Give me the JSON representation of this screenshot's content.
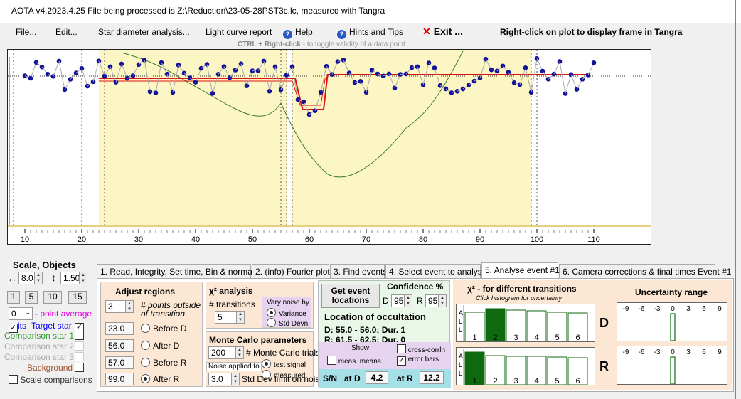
{
  "window": {
    "title": "AOTA v4.2023.4.25   File being processed is Z:\\Reduction\\23-05-28PST3c.lc, measured with Tangra"
  },
  "menu": {
    "file": "File...",
    "edit": "Edit...",
    "star_diameter": "Star diameter analysis...",
    "light_curve": "Light curve report",
    "help": "Help",
    "hints": "Hints and Tips",
    "exit": "Exit ...",
    "right_click_hint": "Right-click on plot to display frame in Tangra"
  },
  "ctrl_hint": {
    "keys": "CTRL + Right-click",
    "text": "  -  to toggle validity of a data point"
  },
  "plot": {
    "x_ticks": [
      "10",
      "20",
      "30",
      "40",
      "50",
      "60",
      "70",
      "80",
      "90",
      "100",
      "110"
    ],
    "colors": {
      "highlight": "#fbf6c4",
      "model": "#e01010",
      "points": "#10109a",
      "chi_curve": "#3c7a28",
      "baseline": "#c8a000"
    }
  },
  "left_panel": {
    "title": "Scale,  Objects",
    "h_scale": "8.0",
    "v_scale": "1.50",
    "avg_buttons": [
      "1",
      "5",
      "10",
      "15"
    ],
    "point_average_value": "0",
    "point_average_label": "- point average",
    "target_label": "Target star",
    "target_prefix": "its",
    "comp1": "Comparison star 1",
    "comp2": "Comparison star 2",
    "comp3": "Comparison star 3",
    "background": "Background",
    "scale_comparisons": "Scale comparisons"
  },
  "tabs": [
    "1.  Read, Integrity, Set time, Bin & normalise",
    "2. (info)  Fourier plot",
    "3. Find events",
    "4. Select event to analyse",
    "5. Analyse event #1",
    "6. Camera corrections & final times Event #1"
  ],
  "adjust": {
    "title": "Adjust regions",
    "points_value": "3",
    "points_label_1": "# points outside",
    "points_label_2": "of transition",
    "before_d": "23.0",
    "after_d": "56.0",
    "before_r": "57.0",
    "after_r": "99.0",
    "before_d_label": "Before D",
    "after_d_label": "After D",
    "before_r_label": "Before R",
    "after_r_label": "After R"
  },
  "chi": {
    "title": "χ² analysis",
    "transitions_label": "# transitions",
    "transitions_value": "5",
    "vary_noise": "Vary noise by",
    "variance": "Variance",
    "stddevn": "Std Devn"
  },
  "montecarlo": {
    "title": "Monte Carlo parameters",
    "trials_value": "200",
    "trials_label": "# Monte Carlo trials",
    "noise_label": "Noise applied to",
    "test_signal": "test signal",
    "measured": "measured",
    "stddev_value": "3.0",
    "stddev_label": "Std Dev limit on noise"
  },
  "location": {
    "get_button_1": "Get event",
    "get_button_2": "locations",
    "confidence_label": "Confidence %",
    "d_label": "D",
    "d_conf": "95",
    "r_label": "R",
    "r_conf": "95",
    "title": "Location of occultation",
    "d_line": "D: 55.0 - 56.0; Dur. 1",
    "r_line": "R: 61.5 - 62.5; Dur. 0",
    "show_label": "Show:",
    "cross_corr": "cross-corrln",
    "meas_means": "meas. means",
    "error_bars": "error bars",
    "sn_label": "S/N",
    "at_d_label": "at D",
    "at_d_value": "4.2",
    "at_r_label": "at R",
    "at_r_value": "12.2"
  },
  "histogram": {
    "title": "χ² - for different transitions",
    "subtitle": "Click histogram for uncertainty",
    "side_letters": [
      "A",
      "L",
      "L"
    ],
    "bins": [
      "1",
      "2",
      "3",
      "4",
      "5",
      "6"
    ],
    "d_values": [
      0.9,
      1.0,
      0.95,
      0.93,
      0.9,
      0.88
    ],
    "r_values": [
      1.0,
      0.9,
      0.88,
      0.86,
      0.84,
      0.82
    ],
    "d_selected": "2",
    "r_selected": "1",
    "d_label": "D",
    "r_label": "R"
  },
  "uncertainty": {
    "title": "Uncertainty range",
    "ticks": [
      "-9",
      "-6",
      "-3",
      "0",
      "3",
      "6",
      "9"
    ]
  }
}
